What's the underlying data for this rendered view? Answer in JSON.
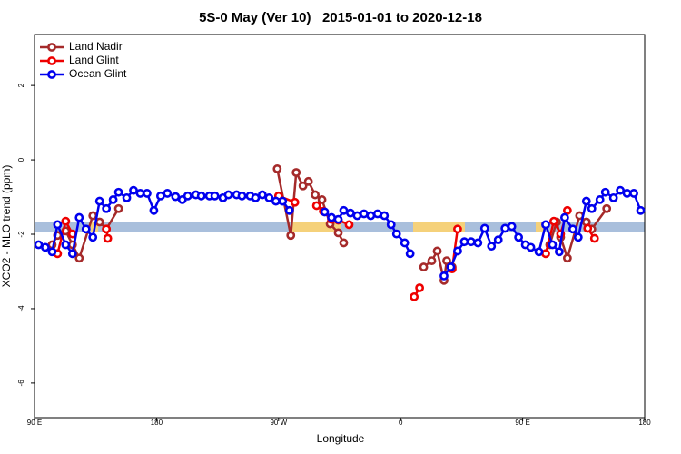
{
  "chart_data": {
    "type": "line",
    "title": "5S-0 May (Ver 10)   2015-01-01 to 2020-12-18",
    "x_label": "Longitude",
    "y_label": "XCO2 - MLO trend (ppm)",
    "xlim": [
      90,
      540
    ],
    "ylim": [
      -6.93,
      3.37
    ],
    "xticks": [
      {
        "value": 90,
        "label": "90 E"
      },
      180,
      {
        "value": 270,
        "label": "90 W"
      },
      {
        "value": 360,
        "label": "0"
      },
      {
        "value": 450,
        "label": "90 E"
      },
      {
        "value": 540,
        "label": "180"
      }
    ],
    "yticks": [
      -6,
      -4,
      -2,
      0,
      2
    ],
    "legend": "top-left",
    "series": [
      {
        "name": "Land Nadir",
        "color": "#a52a2a",
        "x": [
          103,
          107,
          113,
          118,
          123,
          133,
          138,
          143,
          152,
          null,
          269,
          279,
          283,
          288,
          292,
          297,
          302,
          308,
          314,
          318,
          null,
          377,
          383,
          387,
          392,
          394,
          398,
          null,
          470,
          475,
          478,
          483,
          492,
          497,
          501,
          512
        ],
        "values": [
          -2.28,
          -2.03,
          -1.91,
          -2.28,
          -2.64,
          -1.5,
          -1.67,
          -1.86,
          -1.31,
          null,
          -0.24,
          -2.03,
          -0.34,
          -0.7,
          -0.58,
          -0.94,
          -1.07,
          -1.72,
          -1.96,
          -2.23,
          null,
          -2.88,
          -2.71,
          -2.45,
          -3.24,
          -2.71,
          -2.88,
          null,
          -2.28,
          -1.67,
          -2.08,
          -2.64,
          -1.5,
          -1.67,
          -1.86,
          -1.31
        ]
      },
      {
        "name": "Land Glint",
        "color": "#ee0000",
        "x": [
          107,
          113,
          118,
          null,
          143,
          144,
          null,
          270,
          282,
          null,
          298,
          303,
          309,
          314,
          322,
          null,
          370,
          374,
          null,
          398,
          402,
          null,
          467,
          473,
          478,
          483,
          null,
          498,
          503
        ],
        "values": [
          -2.52,
          -1.65,
          -1.99,
          null,
          -1.86,
          -2.11,
          null,
          -0.97,
          -1.14,
          null,
          -1.23,
          -1.38,
          -1.6,
          -1.62,
          -1.74,
          null,
          -3.68,
          -3.44,
          null,
          -2.93,
          -1.86,
          null,
          -2.52,
          -1.65,
          -1.99,
          -1.36,
          null,
          -1.84,
          -2.11
        ]
      },
      {
        "name": "Ocean Glint",
        "color": "#0000ee",
        "x": [
          93,
          98,
          103,
          107,
          113,
          118,
          123,
          128,
          133,
          138,
          143,
          148,
          152,
          158,
          163,
          168,
          173,
          178,
          183,
          188,
          194,
          199,
          203,
          209,
          213,
          219,
          223,
          229,
          233,
          239,
          243,
          249,
          253,
          258,
          263,
          268,
          273,
          278,
          null,
          304,
          309,
          314,
          318,
          323,
          328,
          333,
          338,
          343,
          348,
          353,
          357,
          363,
          367,
          null,
          392,
          397,
          402,
          407,
          412,
          417,
          422,
          427,
          432,
          437,
          442,
          447,
          452,
          456,
          462,
          467,
          472,
          477,
          481,
          487,
          491,
          497,
          501,
          507,
          511,
          517,
          522,
          527,
          532,
          537
        ],
        "values": [
          -2.28,
          -2.35,
          -2.47,
          -1.74,
          -2.28,
          -2.52,
          -1.55,
          -1.86,
          -2.08,
          -1.11,
          -1.31,
          -1.07,
          -0.87,
          -1.02,
          -0.82,
          -0.9,
          -0.9,
          -1.36,
          -0.97,
          -0.9,
          -0.99,
          -1.07,
          -0.97,
          -0.94,
          -0.97,
          -0.97,
          -0.97,
          -1.02,
          -0.94,
          -0.94,
          -0.97,
          -0.97,
          -1.02,
          -0.94,
          -1.02,
          -1.11,
          -1.11,
          -1.36,
          null,
          -1.4,
          -1.55,
          -1.6,
          -1.36,
          -1.43,
          -1.5,
          -1.45,
          -1.5,
          -1.45,
          -1.5,
          -1.74,
          -1.99,
          -2.23,
          -2.52,
          null,
          -3.12,
          -2.88,
          -2.45,
          -2.2,
          -2.2,
          -2.23,
          -1.84,
          -2.32,
          -2.15,
          -1.84,
          -1.79,
          -2.08,
          -2.28,
          -2.35,
          -2.47,
          -1.74,
          -2.28,
          -2.47,
          -1.55,
          -1.86,
          -2.08,
          -1.11,
          -1.31,
          -1.07,
          -0.87,
          -1.02,
          -0.82,
          -0.9,
          -0.9,
          -1.36
        ]
      }
    ]
  }
}
